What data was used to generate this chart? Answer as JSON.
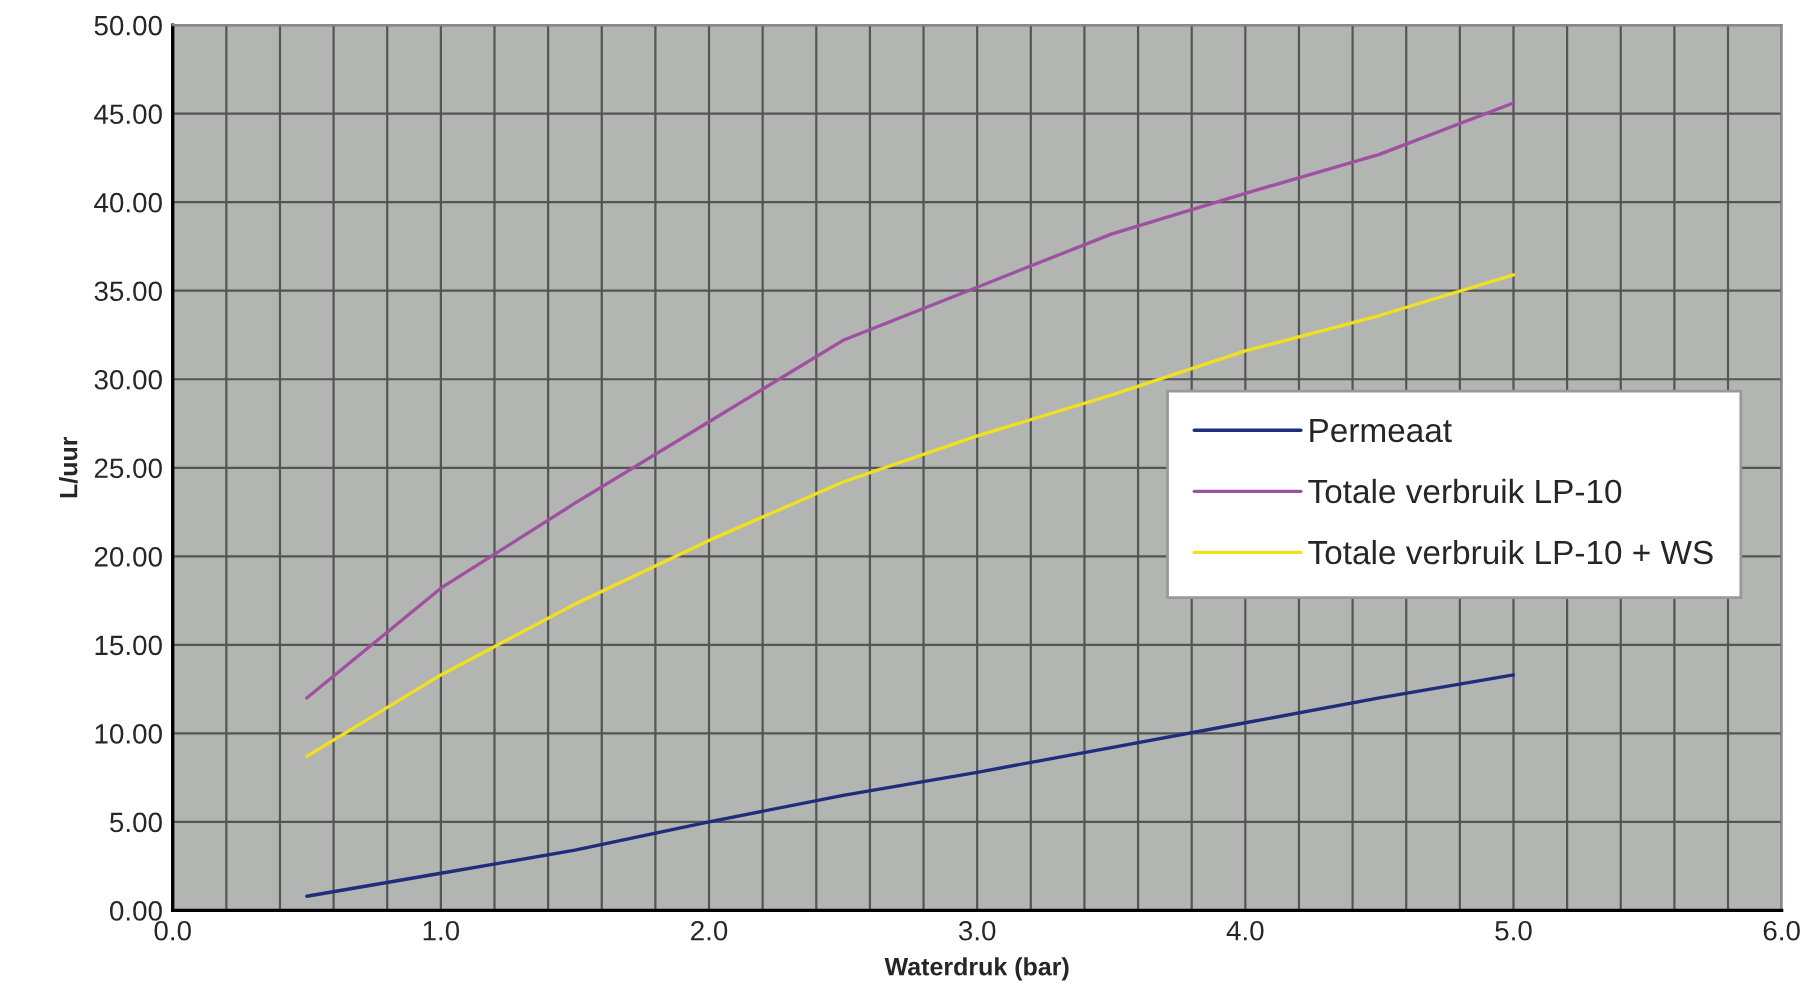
{
  "chart_data": {
    "type": "line",
    "xlabel": "Waterdruk (bar)",
    "ylabel": "L/uur",
    "x": [
      0.5,
      1.0,
      1.5,
      2.0,
      2.5,
      3.0,
      3.5,
      4.0,
      4.5,
      5.0
    ],
    "series": [
      {
        "name": "Permeaat",
        "color": "#1f2d7a",
        "values": [
          0.8,
          2.1,
          3.4,
          5.0,
          6.5,
          7.8,
          9.2,
          10.6,
          12.0,
          13.3
        ]
      },
      {
        "name": "Totale verbruik LP-10",
        "color": "#a050a0",
        "values": [
          12.0,
          18.2,
          23.0,
          27.6,
          32.2,
          35.2,
          38.2,
          40.5,
          42.7,
          45.6
        ]
      },
      {
        "name": "Totale verbruik LP-10 + WS",
        "color": "#f0e020",
        "values": [
          8.7,
          13.3,
          17.3,
          20.9,
          24.2,
          26.8,
          29.1,
          31.6,
          33.6,
          35.9
        ]
      }
    ],
    "xlim": [
      0,
      6
    ],
    "ylim": [
      0,
      50
    ],
    "xticks": [
      {
        "value": 0,
        "label": "0.0"
      },
      {
        "value": 0.2,
        "label": null
      },
      {
        "value": 0.4,
        "label": null
      },
      {
        "value": 0.6,
        "label": null
      },
      {
        "value": 0.8,
        "label": null
      },
      {
        "value": 1,
        "label": "1.0"
      },
      {
        "value": 1.2,
        "label": null
      },
      {
        "value": 1.4,
        "label": null
      },
      {
        "value": 1.6,
        "label": null
      },
      {
        "value": 1.8,
        "label": null
      },
      {
        "value": 2,
        "label": "2.0"
      },
      {
        "value": 2.2,
        "label": null
      },
      {
        "value": 2.4,
        "label": null
      },
      {
        "value": 2.6,
        "label": null
      },
      {
        "value": 2.8,
        "label": null
      },
      {
        "value": 3,
        "label": "3.0"
      },
      {
        "value": 3.2,
        "label": null
      },
      {
        "value": 3.4,
        "label": null
      },
      {
        "value": 3.6,
        "label": null
      },
      {
        "value": 3.8,
        "label": null
      },
      {
        "value": 4,
        "label": "4.0"
      },
      {
        "value": 4.2,
        "label": null
      },
      {
        "value": 4.4,
        "label": null
      },
      {
        "value": 4.6,
        "label": null
      },
      {
        "value": 4.8,
        "label": null
      },
      {
        "value": 5,
        "label": "5.0"
      },
      {
        "value": 5.2,
        "label": null
      },
      {
        "value": 5.4,
        "label": null
      },
      {
        "value": 5.6,
        "label": null
      },
      {
        "value": 5.8,
        "label": null
      },
      {
        "value": 6,
        "label": "6.0"
      }
    ],
    "yticks": [
      {
        "value": 0,
        "label": "0.00"
      },
      {
        "value": 5,
        "label": "5.00"
      },
      {
        "value": 10,
        "label": "10.00"
      },
      {
        "value": 15,
        "label": "15.00"
      },
      {
        "value": 20,
        "label": "20.00"
      },
      {
        "value": 25,
        "label": "25.00"
      },
      {
        "value": 30,
        "label": "30.00"
      },
      {
        "value": 35,
        "label": "35.00"
      },
      {
        "value": 40,
        "label": "40.00"
      },
      {
        "value": 45,
        "label": "45.00"
      },
      {
        "value": 50,
        "label": "50.00"
      }
    ],
    "grid": true,
    "legend": "right",
    "marker": "none",
    "line_style": "solid"
  }
}
